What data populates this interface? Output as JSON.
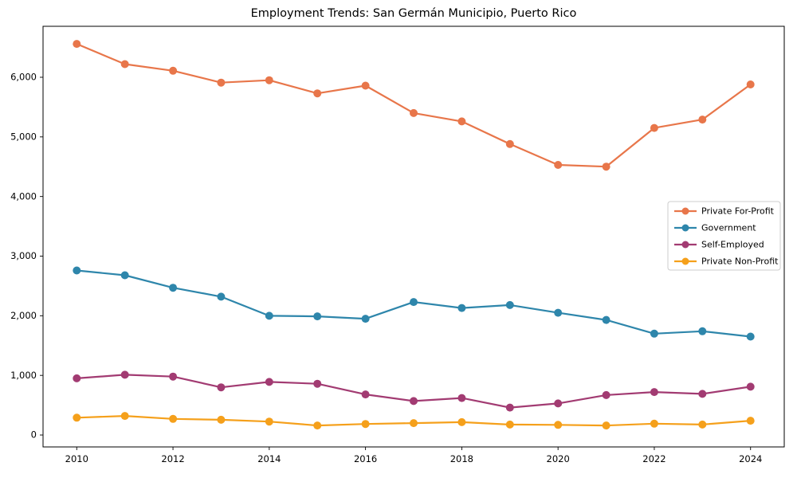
{
  "chart_data": {
    "type": "line",
    "title": "Employment Trends: San Germán Municipio, Puerto Rico",
    "xlabel": "",
    "ylabel": "",
    "x": [
      2010,
      2011,
      2012,
      2013,
      2014,
      2015,
      2016,
      2017,
      2018,
      2019,
      2020,
      2021,
      2022,
      2023,
      2024
    ],
    "series": [
      {
        "name": "Private For-Profit",
        "color": "#E8764A",
        "values": [
          6560,
          6220,
          6110,
          5910,
          5950,
          5730,
          5860,
          5400,
          5260,
          4880,
          4530,
          4500,
          5150,
          5290,
          5880
        ]
      },
      {
        "name": "Government",
        "color": "#2E86AB",
        "values": [
          2760,
          2680,
          2470,
          2320,
          2000,
          1990,
          1950,
          2230,
          2130,
          2180,
          2050,
          1930,
          1700,
          1740,
          1650
        ]
      },
      {
        "name": "Self-Employed",
        "color": "#A23B72",
        "values": [
          950,
          1010,
          980,
          800,
          890,
          860,
          680,
          570,
          620,
          460,
          530,
          670,
          720,
          690,
          810
        ]
      },
      {
        "name": "Private Non-Profit",
        "color": "#F5A01B",
        "values": [
          290,
          320,
          270,
          255,
          225,
          160,
          185,
          200,
          215,
          175,
          170,
          160,
          190,
          175,
          240
        ]
      }
    ],
    "xticks": [
      2010,
      2012,
      2014,
      2016,
      2018,
      2020,
      2022,
      2024
    ],
    "xtick_labels": [
      "2010",
      "2012",
      "2014",
      "2016",
      "2018",
      "2020",
      "2022",
      "2024"
    ],
    "yticks": [
      0,
      1000,
      2000,
      3000,
      4000,
      5000,
      6000
    ],
    "ytick_labels": [
      "0",
      "1,000",
      "2,000",
      "3,000",
      "4,000",
      "5,000",
      "6,000"
    ],
    "xlim": [
      2009.3,
      2024.7
    ],
    "ylim": [
      -200,
      6855
    ],
    "grid": false,
    "legend_position": "center-right",
    "marker": "circle",
    "line_width": 2.2,
    "marker_radius": 5,
    "axis_color": "#000000",
    "background": "#ffffff"
  }
}
